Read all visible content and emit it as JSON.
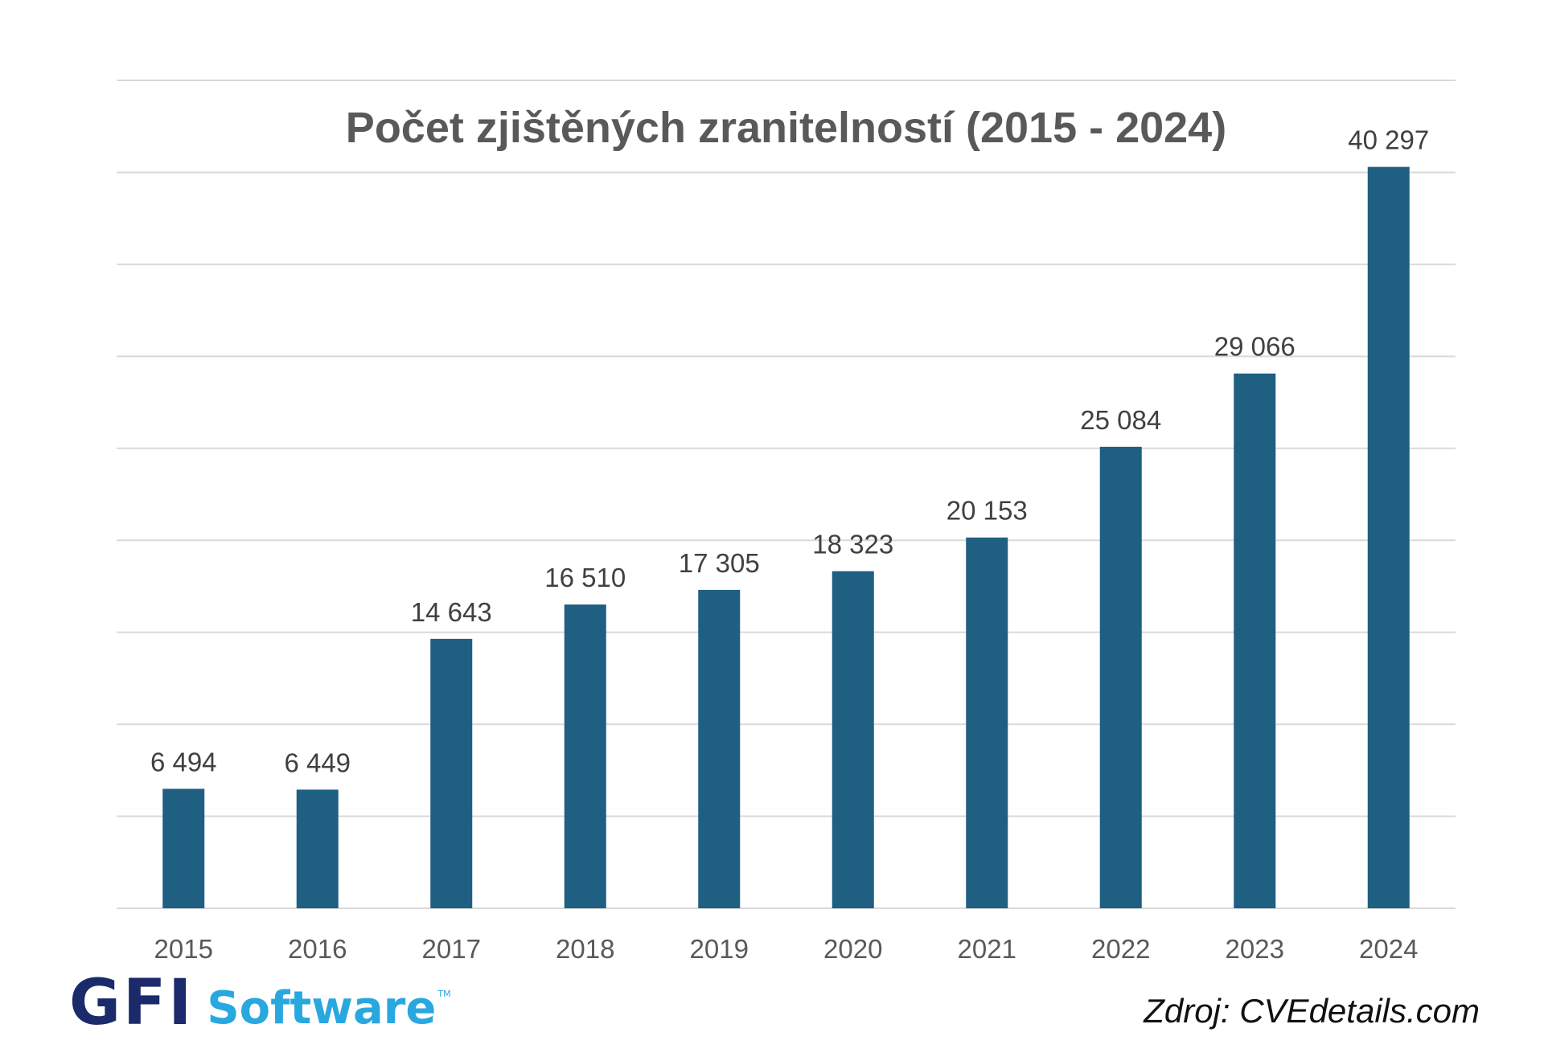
{
  "chart_data": {
    "type": "bar",
    "title": "Počet zjištěných zranitelností (2015 - 2024)",
    "categories": [
      "2015",
      "2016",
      "2017",
      "2018",
      "2019",
      "2020",
      "2021",
      "2022",
      "2023",
      "2024"
    ],
    "values": [
      6494,
      6449,
      14643,
      16510,
      17305,
      18323,
      20153,
      25084,
      29066,
      40297
    ],
    "value_labels": [
      "6 494",
      "6 449",
      "14 643",
      "16 510",
      "17 305",
      "18 323",
      "20 153",
      "25 084",
      "29 066",
      "40 297"
    ],
    "ylim": [
      0,
      45000
    ],
    "gridline_step": 5000,
    "grid": true,
    "legend": "none",
    "bar_color": "#1f5f82",
    "xlabel": "",
    "ylabel": ""
  },
  "branding": {
    "logo_gfi": "GFI",
    "logo_software": "Software",
    "logo_tm": "TM",
    "logo_colors": {
      "gfi": "#1b2a6b",
      "software": "#29a7df"
    }
  },
  "source": "Zdroj: CVEdetails.com"
}
